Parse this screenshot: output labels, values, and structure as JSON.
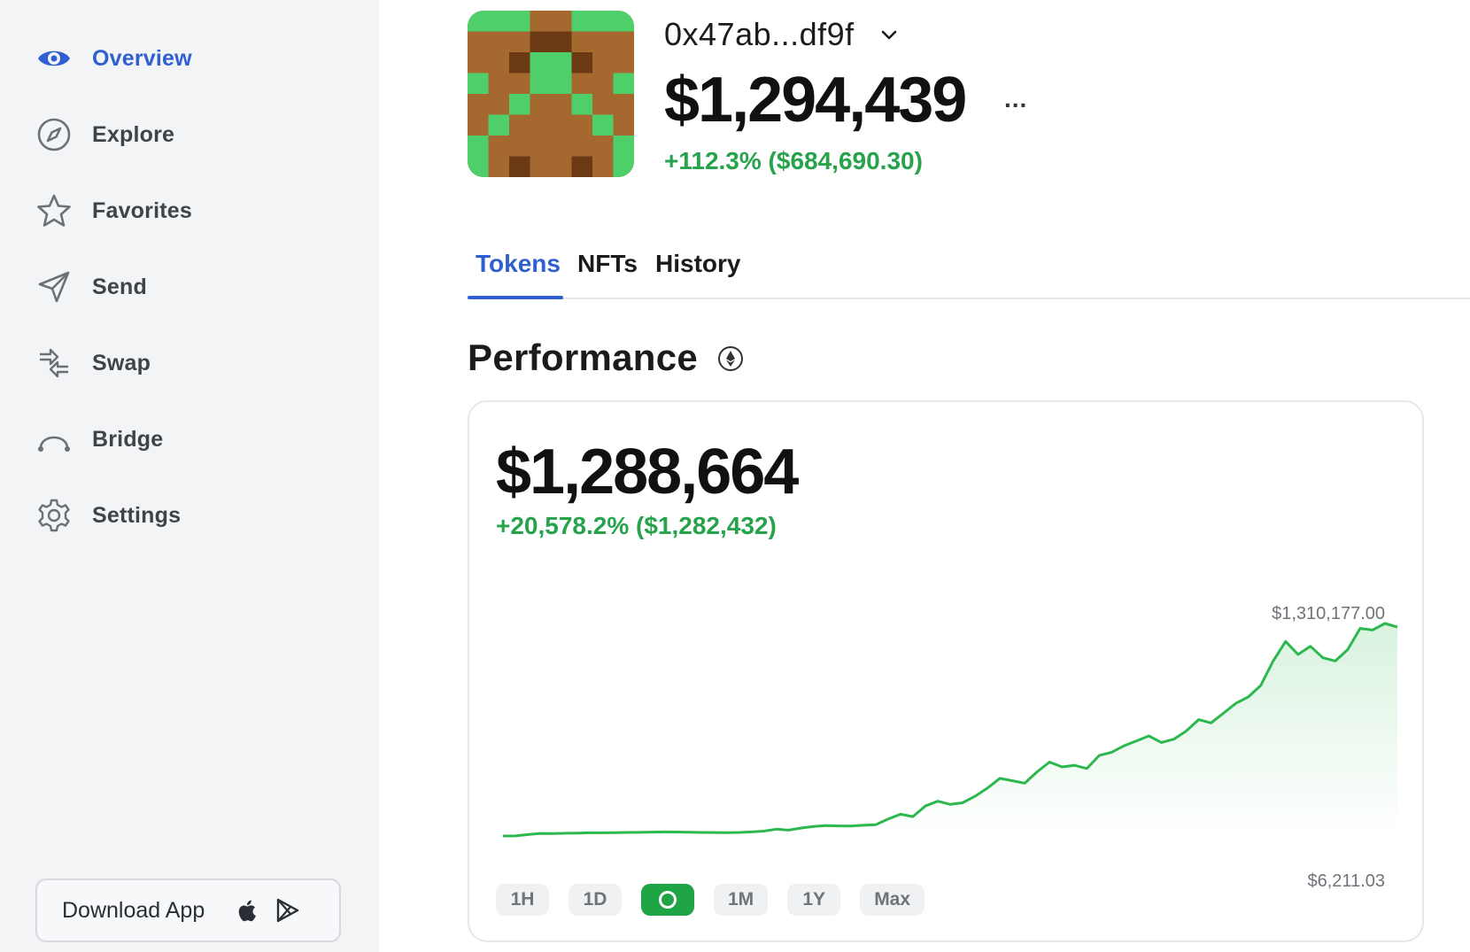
{
  "sidebar": {
    "items": [
      {
        "label": "Overview",
        "icon": "eye-icon",
        "active": true
      },
      {
        "label": "Explore",
        "icon": "compass-icon",
        "active": false
      },
      {
        "label": "Favorites",
        "icon": "star-icon",
        "active": false
      },
      {
        "label": "Send",
        "icon": "send-icon",
        "active": false
      },
      {
        "label": "Swap",
        "icon": "swap-icon",
        "active": false
      },
      {
        "label": "Bridge",
        "icon": "bridge-icon",
        "active": false
      },
      {
        "label": "Settings",
        "icon": "gear-icon",
        "active": false
      }
    ],
    "download_label": "Download App"
  },
  "account": {
    "name": "0x47ab...df9f",
    "balance": "$1,294,439",
    "more": "...",
    "change": "+112.3% ($684,690.30)"
  },
  "tabs": [
    {
      "label": "Tokens",
      "active": true
    },
    {
      "label": "NFTs",
      "active": false
    },
    {
      "label": "History",
      "active": false
    }
  ],
  "performance": {
    "title": "Performance",
    "value": "$1,288,664",
    "change": "+20,578.2% ($1,282,432)",
    "max_label": "$1,310,177.00",
    "min_label": "$6,211.03",
    "ranges": [
      {
        "label": "1H",
        "active": false
      },
      {
        "label": "1D",
        "active": false
      },
      {
        "label": "",
        "active": true
      },
      {
        "label": "1M",
        "active": false
      },
      {
        "label": "1Y",
        "active": false
      },
      {
        "label": "Max",
        "active": false
      }
    ]
  },
  "colors": {
    "accent": "#2f5fd0",
    "positive": "#27a34c",
    "sidebar_bg": "#f3f4f6",
    "chart_line": "#2cb84f"
  },
  "chart_data": {
    "type": "line",
    "series": [
      {
        "values": [
          6211,
          6500,
          15000,
          22000,
          21000,
          23000,
          24000,
          26000,
          25500,
          27000,
          28000,
          28500,
          30000,
          31000,
          30500,
          29500,
          28000,
          27500,
          27000,
          28000,
          31000,
          36000,
          48000,
          42000,
          55000,
          65000,
          70000,
          68000,
          67000,
          72000,
          75000,
          110000,
          140000,
          125000,
          190000,
          220000,
          200000,
          210000,
          250000,
          300000,
          360000,
          345000,
          330000,
          400000,
          460000,
          430000,
          440000,
          420000,
          500000,
          520000,
          560000,
          590000,
          620000,
          580000,
          600000,
          650000,
          720000,
          700000,
          760000,
          820000,
          860000,
          930000,
          1080000,
          1200000,
          1120000,
          1170000,
          1100000,
          1080000,
          1150000,
          1280000,
          1270000,
          1310177,
          1288664
        ]
      }
    ],
    "ylim": [
      6211.03,
      1310177.0
    ]
  }
}
